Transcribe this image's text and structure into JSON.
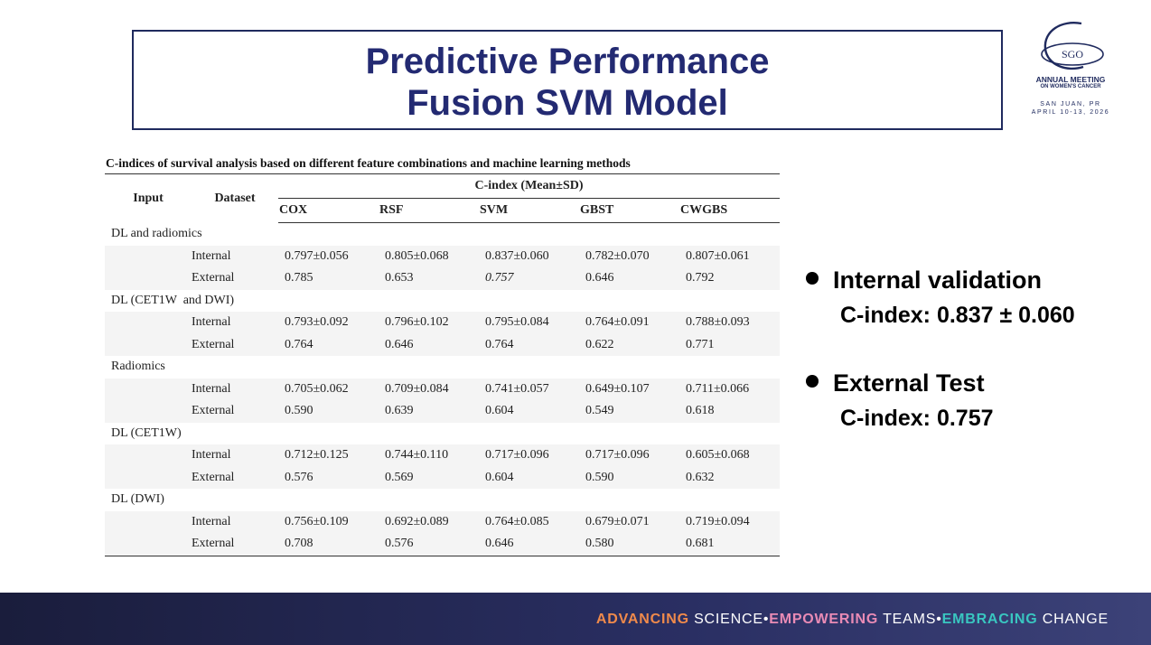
{
  "slide": {
    "title_line1": "Predictive Performance",
    "title_line2": "Fusion SVM Model"
  },
  "logo": {
    "abbr": "SGO",
    "line1": "ANNUAL MEETING",
    "line2": "ON WOMEN'S CANCER",
    "line3": "SAN JUAN, PR",
    "line4": "APRIL 10-13, 2026",
    "color": "#1f2a5e"
  },
  "table": {
    "title": "C-indices of survival analysis based on different feature combinations and machine learning methods",
    "header": {
      "input": "Input",
      "dataset": "Dataset",
      "cindex": "C-index (Mean±SD)",
      "methods": [
        "COX",
        "RSF",
        "SVM",
        "GBST",
        "CWGBS"
      ]
    },
    "groups": [
      {
        "name": "DL and radiomics",
        "rows": [
          {
            "dataset": "Internal",
            "values": [
              "0.797±0.056",
              "0.805±0.068",
              "0.837±0.060",
              "0.782±0.070",
              "0.807±0.061"
            ]
          },
          {
            "dataset": "External",
            "values": [
              "0.785",
              "0.653",
              "0.757",
              "0.646",
              "0.792"
            ]
          }
        ]
      },
      {
        "name": "DL (CET1W  and DWI)",
        "rows": [
          {
            "dataset": "Internal",
            "values": [
              "0.793±0.092",
              "0.796±0.102",
              "0.795±0.084",
              "0.764±0.091",
              "0.788±0.093"
            ]
          },
          {
            "dataset": "External",
            "values": [
              "0.764",
              "0.646",
              "0.764",
              "0.622",
              "0.771"
            ]
          }
        ]
      },
      {
        "name": "Radiomics",
        "rows": [
          {
            "dataset": "Internal",
            "values": [
              "0.705±0.062",
              "0.709±0.084",
              "0.741±0.057",
              "0.649±0.107",
              "0.711±0.066"
            ]
          },
          {
            "dataset": "External",
            "values": [
              "0.590",
              "0.639",
              "0.604",
              "0.549",
              "0.618"
            ]
          }
        ]
      },
      {
        "name": "DL (CET1W)",
        "rows": [
          {
            "dataset": "Internal",
            "values": [
              "0.712±0.125",
              "0.744±0.110",
              "0.717±0.096",
              "0.717±0.096",
              "0.605±0.068"
            ]
          },
          {
            "dataset": "External",
            "values": [
              "0.576",
              "0.569",
              "0.604",
              "0.590",
              "0.632"
            ]
          }
        ]
      },
      {
        "name": "DL (DWI)",
        "rows": [
          {
            "dataset": "Internal",
            "values": [
              "0.756±0.109",
              "0.692±0.089",
              "0.764±0.085",
              "0.679±0.071",
              "0.719±0.094"
            ]
          },
          {
            "dataset": "External",
            "values": [
              "0.708",
              "0.576",
              "0.646",
              "0.580",
              "0.681"
            ]
          }
        ]
      }
    ]
  },
  "bullets": [
    {
      "heading": "Internal validation",
      "detail": "C-index: 0.837 ± 0.060"
    },
    {
      "heading": "External Test",
      "detail": "C-index: 0.757"
    }
  ],
  "footer": {
    "w1": "ADVANCING",
    "w2": "SCIENCE",
    "sep1": "•",
    "w3": "EMPOWERING",
    "w4": "TEAMS",
    "sep2": "•",
    "w5": "EMBRACING",
    "w6": "CHANGE"
  },
  "colors": {
    "title": "#232a72",
    "footer_orange": "#f08a4b",
    "footer_pink": "#e98bb5",
    "footer_teal": "#39c6c0"
  }
}
